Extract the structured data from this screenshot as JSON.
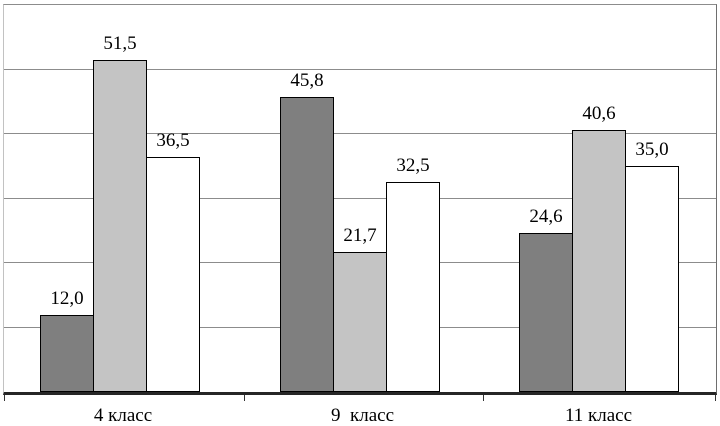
{
  "page": {
    "background_color": "#ffffff",
    "text_color": "#000000"
  },
  "chart_data": {
    "type": "bar",
    "title": "",
    "xlabel": "",
    "ylabel": "",
    "categories": [
      "4 класс",
      "9  класс",
      "11 класс"
    ],
    "series": [
      {
        "name": "dark-gray-series",
        "color": "#7f7f7f",
        "values": [
          12.0,
          45.8,
          24.6
        ],
        "labels": [
          "12,0",
          "45,8",
          "24,6"
        ]
      },
      {
        "name": "light-gray-series",
        "color": "#c4c4c4",
        "values": [
          51.5,
          21.7,
          40.6
        ],
        "labels": [
          "51,5",
          "21,7",
          "40,6"
        ]
      },
      {
        "name": "white-series",
        "color": "#ffffff",
        "values": [
          36.5,
          32.5,
          35.0
        ],
        "labels": [
          "36,5",
          "32,5",
          "35,0"
        ]
      }
    ],
    "ylim": [
      0,
      60
    ],
    "gridline_step": 10,
    "grid": true,
    "legend": false,
    "y_tick_labels_visible": false,
    "bar_border_color": "#000000",
    "gridline_color": "#8c8c8c",
    "axis_color": "#262626",
    "tick_color": "#333333"
  }
}
